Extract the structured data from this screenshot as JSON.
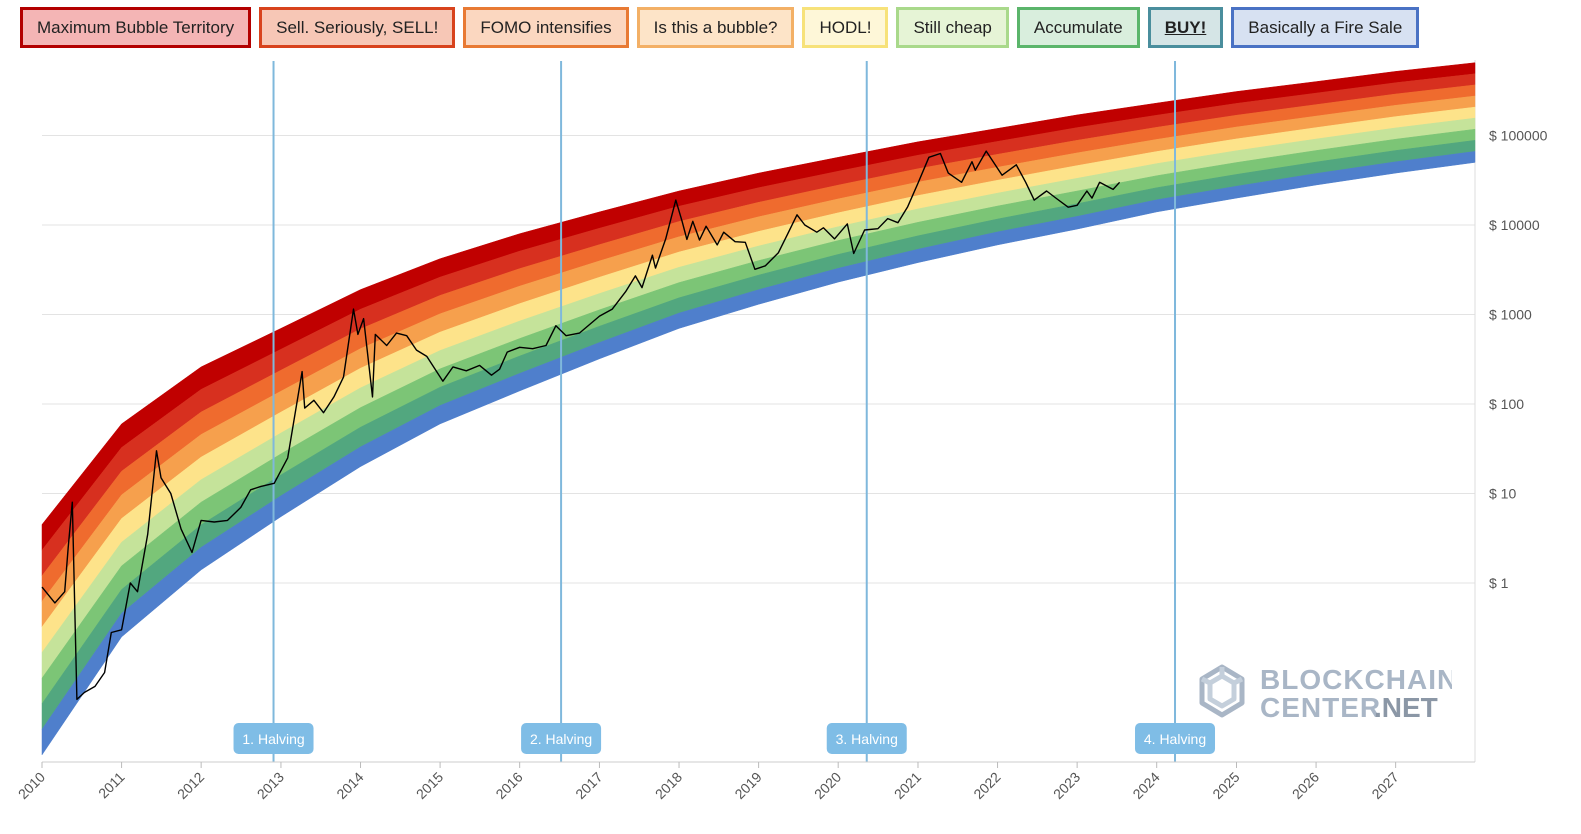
{
  "legend": [
    {
      "label": "Maximum Bubble Territory",
      "bg": "#f4b5b5",
      "border": "#b30000",
      "active": false
    },
    {
      "label": "Sell. Seriously, SELL!",
      "bg": "#f7c7b6",
      "border": "#d8431d",
      "active": false
    },
    {
      "label": "FOMO intensifies",
      "bg": "#fbd7c0",
      "border": "#e87a34",
      "active": false
    },
    {
      "label": "Is this a bubble?",
      "bg": "#fde4c8",
      "border": "#f3b066",
      "active": false
    },
    {
      "label": "HODL!",
      "bg": "#fef7d8",
      "border": "#f7e27a",
      "active": false
    },
    {
      "label": "Still cheap",
      "bg": "#e6f4d6",
      "border": "#a9d98b",
      "active": false
    },
    {
      "label": "Accumulate",
      "bg": "#d9eedd",
      "border": "#5bb56b",
      "active": false
    },
    {
      "label": "BUY!",
      "bg": "#d5e5e6",
      "border": "#4a8e9d",
      "active": true
    },
    {
      "label": "Basically a Fire Sale",
      "bg": "#d7e1f2",
      "border": "#4a72c4",
      "active": false
    }
  ],
  "chart_data": {
    "type": "line",
    "title": "",
    "xlabel": "",
    "ylabel": "",
    "y_scale": "log",
    "ylim": [
      0.01,
      1000000
    ],
    "xlim": [
      "2010-01-01",
      "2027-12-31"
    ],
    "y_ticks": [
      "$ 1",
      "$ 10",
      "$ 100",
      "$ 1000",
      "$ 10000",
      "$ 100000"
    ],
    "y_tick_values": [
      1,
      10,
      100,
      1000,
      10000,
      100000
    ],
    "x_ticks": [
      "2010",
      "2011",
      "2012",
      "2013",
      "2014",
      "2015",
      "2016",
      "2017",
      "2018",
      "2019",
      "2020",
      "2021",
      "2022",
      "2023",
      "2024",
      "2025",
      "2026",
      "2027"
    ],
    "grid": true,
    "band_colors": [
      "#c00000",
      "#d7301f",
      "#ef6b2e",
      "#f6a04d",
      "#fde38a",
      "#c5e39a",
      "#7cc576",
      "#52a77f",
      "#4f7fcc"
    ],
    "rainbow_top": [
      {
        "date": "2010-01-01",
        "value": 4.5
      },
      {
        "date": "2011-01-01",
        "value": 60
      },
      {
        "date": "2012-01-01",
        "value": 260
      },
      {
        "date": "2013-01-01",
        "value": 700
      },
      {
        "date": "2014-01-01",
        "value": 1900
      },
      {
        "date": "2015-01-01",
        "value": 4200
      },
      {
        "date": "2016-01-01",
        "value": 8000
      },
      {
        "date": "2017-01-01",
        "value": 14000
      },
      {
        "date": "2018-01-01",
        "value": 24000
      },
      {
        "date": "2019-01-01",
        "value": 38000
      },
      {
        "date": "2020-01-01",
        "value": 57000
      },
      {
        "date": "2021-01-01",
        "value": 85000
      },
      {
        "date": "2022-01-01",
        "value": 120000
      },
      {
        "date": "2023-01-01",
        "value": 170000
      },
      {
        "date": "2024-01-01",
        "value": 230000
      },
      {
        "date": "2025-01-01",
        "value": 310000
      },
      {
        "date": "2026-01-01",
        "value": 400000
      },
      {
        "date": "2027-01-01",
        "value": 520000
      },
      {
        "date": "2027-12-31",
        "value": 650000
      }
    ],
    "rainbow_bottom": [
      {
        "date": "2010-01-01",
        "value": 0.012
      },
      {
        "date": "2011-01-01",
        "value": 0.25
      },
      {
        "date": "2012-01-01",
        "value": 1.4
      },
      {
        "date": "2013-01-01",
        "value": 5.5
      },
      {
        "date": "2014-01-01",
        "value": 20
      },
      {
        "date": "2015-01-01",
        "value": 60
      },
      {
        "date": "2016-01-01",
        "value": 140
      },
      {
        "date": "2017-01-01",
        "value": 320
      },
      {
        "date": "2018-01-01",
        "value": 700
      },
      {
        "date": "2019-01-01",
        "value": 1300
      },
      {
        "date": "2020-01-01",
        "value": 2300
      },
      {
        "date": "2021-01-01",
        "value": 3800
      },
      {
        "date": "2022-01-01",
        "value": 6000
      },
      {
        "date": "2023-01-01",
        "value": 9000
      },
      {
        "date": "2024-01-01",
        "value": 14000
      },
      {
        "date": "2025-01-01",
        "value": 20000
      },
      {
        "date": "2026-01-01",
        "value": 28000
      },
      {
        "date": "2027-01-01",
        "value": 38000
      },
      {
        "date": "2027-12-31",
        "value": 50000
      }
    ],
    "series": [
      {
        "points": [
          {
            "date": "2010-01-01",
            "value": 0.9
          },
          {
            "date": "2010-03-01",
            "value": 0.6
          },
          {
            "date": "2010-04-15",
            "value": 0.8
          },
          {
            "date": "2010-05-01",
            "value": 2.5
          },
          {
            "date": "2010-05-20",
            "value": 8
          },
          {
            "date": "2010-06-10",
            "value": 0.05
          },
          {
            "date": "2010-07-15",
            "value": 0.06
          },
          {
            "date": "2010-09-01",
            "value": 0.07
          },
          {
            "date": "2010-10-15",
            "value": 0.1
          },
          {
            "date": "2010-11-15",
            "value": 0.28
          },
          {
            "date": "2011-01-01",
            "value": 0.3
          },
          {
            "date": "2011-02-10",
            "value": 1.0
          },
          {
            "date": "2011-03-15",
            "value": 0.8
          },
          {
            "date": "2011-05-01",
            "value": 3.5
          },
          {
            "date": "2011-06-10",
            "value": 30
          },
          {
            "date": "2011-07-01",
            "value": 15
          },
          {
            "date": "2011-08-15",
            "value": 10
          },
          {
            "date": "2011-10-01",
            "value": 4
          },
          {
            "date": "2011-11-20",
            "value": 2.2
          },
          {
            "date": "2012-01-01",
            "value": 5
          },
          {
            "date": "2012-03-01",
            "value": 4.8
          },
          {
            "date": "2012-05-01",
            "value": 5
          },
          {
            "date": "2012-07-01",
            "value": 7
          },
          {
            "date": "2012-08-15",
            "value": 11
          },
          {
            "date": "2012-10-01",
            "value": 12
          },
          {
            "date": "2012-12-01",
            "value": 13
          },
          {
            "date": "2013-02-01",
            "value": 25
          },
          {
            "date": "2013-04-08",
            "value": 230
          },
          {
            "date": "2013-04-20",
            "value": 90
          },
          {
            "date": "2013-06-01",
            "value": 110
          },
          {
            "date": "2013-07-15",
            "value": 80
          },
          {
            "date": "2013-09-01",
            "value": 120
          },
          {
            "date": "2013-10-15",
            "value": 200
          },
          {
            "date": "2013-11-30",
            "value": 1150
          },
          {
            "date": "2013-12-20",
            "value": 600
          },
          {
            "date": "2014-01-15",
            "value": 900
          },
          {
            "date": "2014-02-25",
            "value": 120
          },
          {
            "date": "2014-03-10",
            "value": 600
          },
          {
            "date": "2014-05-01",
            "value": 450
          },
          {
            "date": "2014-06-15",
            "value": 620
          },
          {
            "date": "2014-08-01",
            "value": 580
          },
          {
            "date": "2014-09-15",
            "value": 400
          },
          {
            "date": "2014-11-01",
            "value": 340
          },
          {
            "date": "2015-01-14",
            "value": 180
          },
          {
            "date": "2015-03-01",
            "value": 260
          },
          {
            "date": "2015-05-01",
            "value": 235
          },
          {
            "date": "2015-07-01",
            "value": 270
          },
          {
            "date": "2015-08-25",
            "value": 210
          },
          {
            "date": "2015-10-01",
            "value": 245
          },
          {
            "date": "2015-11-05",
            "value": 380
          },
          {
            "date": "2016-01-01",
            "value": 430
          },
          {
            "date": "2016-03-01",
            "value": 415
          },
          {
            "date": "2016-05-01",
            "value": 450
          },
          {
            "date": "2016-06-15",
            "value": 750
          },
          {
            "date": "2016-08-01",
            "value": 580
          },
          {
            "date": "2016-10-01",
            "value": 620
          },
          {
            "date": "2017-01-01",
            "value": 960
          },
          {
            "date": "2017-03-01",
            "value": 1150
          },
          {
            "date": "2017-05-01",
            "value": 1800
          },
          {
            "date": "2017-06-15",
            "value": 2700
          },
          {
            "date": "2017-07-15",
            "value": 2000
          },
          {
            "date": "2017-09-01",
            "value": 4600
          },
          {
            "date": "2017-09-15",
            "value": 3300
          },
          {
            "date": "2017-11-01",
            "value": 7000
          },
          {
            "date": "2017-12-17",
            "value": 19000
          },
          {
            "date": "2018-01-15",
            "value": 11000
          },
          {
            "date": "2018-02-06",
            "value": 6900
          },
          {
            "date": "2018-03-05",
            "value": 11000
          },
          {
            "date": "2018-04-05",
            "value": 6800
          },
          {
            "date": "2018-05-05",
            "value": 9700
          },
          {
            "date": "2018-06-25",
            "value": 6000
          },
          {
            "date": "2018-07-25",
            "value": 8300
          },
          {
            "date": "2018-09-15",
            "value": 6500
          },
          {
            "date": "2018-11-01",
            "value": 6400
          },
          {
            "date": "2018-12-15",
            "value": 3200
          },
          {
            "date": "2019-02-01",
            "value": 3500
          },
          {
            "date": "2019-04-02",
            "value": 4900
          },
          {
            "date": "2019-05-15",
            "value": 8000
          },
          {
            "date": "2019-06-26",
            "value": 13000
          },
          {
            "date": "2019-08-01",
            "value": 10000
          },
          {
            "date": "2019-09-25",
            "value": 8300
          },
          {
            "date": "2019-10-25",
            "value": 9300
          },
          {
            "date": "2019-12-15",
            "value": 7000
          },
          {
            "date": "2020-02-12",
            "value": 10300
          },
          {
            "date": "2020-03-12",
            "value": 4800
          },
          {
            "date": "2020-05-01",
            "value": 8800
          },
          {
            "date": "2020-07-01",
            "value": 9100
          },
          {
            "date": "2020-08-15",
            "value": 11800
          },
          {
            "date": "2020-10-01",
            "value": 10600
          },
          {
            "date": "2020-11-15",
            "value": 16000
          },
          {
            "date": "2020-12-31",
            "value": 29000
          },
          {
            "date": "2021-02-20",
            "value": 57000
          },
          {
            "date": "2021-04-14",
            "value": 63000
          },
          {
            "date": "2021-05-20",
            "value": 38000
          },
          {
            "date": "2021-07-20",
            "value": 30000
          },
          {
            "date": "2021-09-06",
            "value": 51000
          },
          {
            "date": "2021-09-21",
            "value": 41000
          },
          {
            "date": "2021-11-10",
            "value": 67000
          },
          {
            "date": "2022-01-22",
            "value": 36000
          },
          {
            "date": "2022-03-28",
            "value": 47000
          },
          {
            "date": "2022-05-10",
            "value": 30000
          },
          {
            "date": "2022-06-18",
            "value": 19000
          },
          {
            "date": "2022-08-14",
            "value": 24000
          },
          {
            "date": "2022-10-01",
            "value": 19500
          },
          {
            "date": "2022-11-21",
            "value": 15800
          },
          {
            "date": "2023-01-01",
            "value": 16600
          },
          {
            "date": "2023-02-15",
            "value": 24000
          },
          {
            "date": "2023-03-10",
            "value": 20000
          },
          {
            "date": "2023-04-14",
            "value": 30000
          },
          {
            "date": "2023-06-15",
            "value": 25000
          },
          {
            "date": "2023-07-15",
            "value": 30000
          }
        ]
      }
    ],
    "annotations": [
      {
        "label": "1. Halving",
        "date": "2012-11-28"
      },
      {
        "label": "2. Halving",
        "date": "2016-07-09"
      },
      {
        "label": "3. Halving",
        "date": "2020-05-11"
      },
      {
        "label": "4. Halving",
        "date": "2024-03-25"
      }
    ]
  },
  "watermark": {
    "brand": "BLOCKCHAIN",
    "brand2": "CENTER",
    "tld": ".NET"
  }
}
